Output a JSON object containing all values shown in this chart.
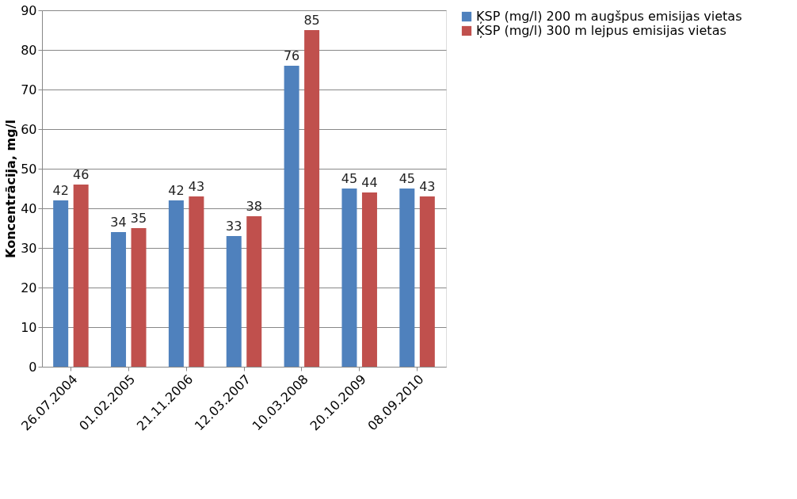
{
  "chart_data": {
    "type": "bar",
    "ylabel": "Koncentrācija, mg/l",
    "categories": [
      "26.07.2004",
      "01.02.2005",
      "21.11.2006",
      "12.03.2007",
      "10.03.2008",
      "20.10.2009",
      "08.09.2010"
    ],
    "series": [
      {
        "name": "ĶSP (mg/l) 200 m augšpus emisijas vietas",
        "color": "#4f81bd",
        "values": [
          42,
          34,
          42,
          33,
          76,
          45,
          45
        ]
      },
      {
        "name": "ĶSP (mg/l) 300 m lejpus emisijas vietas",
        "color": "#c0504d",
        "values": [
          46,
          35,
          43,
          38,
          85,
          44,
          43
        ]
      }
    ],
    "ylim": [
      0,
      90
    ],
    "yticks": [
      0,
      10,
      20,
      30,
      40,
      50,
      60,
      70,
      80,
      90
    ],
    "grid": "y",
    "legend": "right",
    "data_labels": true
  }
}
